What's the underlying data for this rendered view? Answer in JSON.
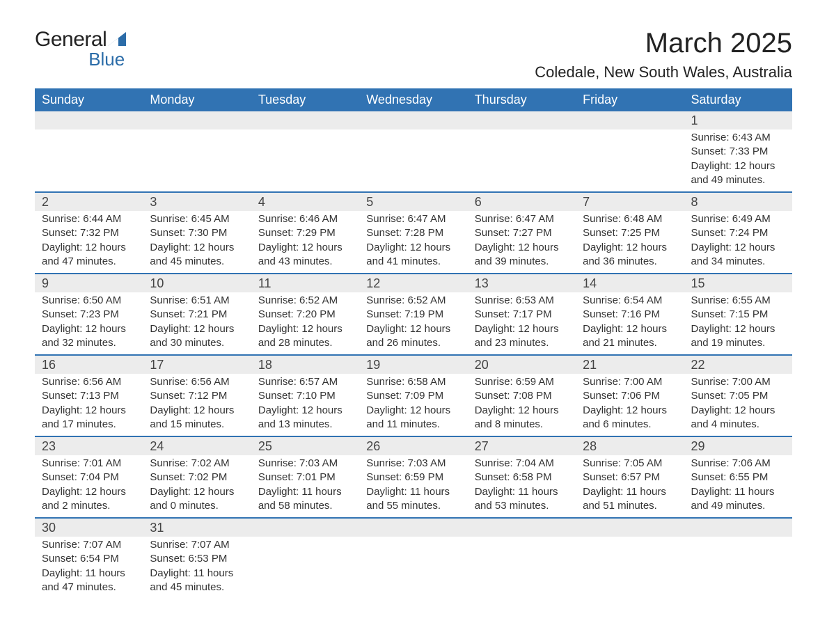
{
  "logo": {
    "text_general": "General",
    "text_blue": "Blue",
    "tri_color": "#2b6ca8"
  },
  "title": "March 2025",
  "location": "Coledale, New South Wales, Australia",
  "colors": {
    "header_bg": "#3173b3",
    "header_text": "#ffffff",
    "daynum_bg": "#ececec",
    "row_border": "#3173b3",
    "body_text": "#333333",
    "title_text": "#222222"
  },
  "typography": {
    "title_fontsize": 40,
    "location_fontsize": 22,
    "header_fontsize": 18,
    "daynum_fontsize": 18,
    "detail_fontsize": 15
  },
  "weekdays": [
    "Sunday",
    "Monday",
    "Tuesday",
    "Wednesday",
    "Thursday",
    "Friday",
    "Saturday"
  ],
  "weeks": [
    [
      null,
      null,
      null,
      null,
      null,
      null,
      {
        "day": "1",
        "sunrise": "Sunrise: 6:43 AM",
        "sunset": "Sunset: 7:33 PM",
        "daylight1": "Daylight: 12 hours",
        "daylight2": "and 49 minutes."
      }
    ],
    [
      {
        "day": "2",
        "sunrise": "Sunrise: 6:44 AM",
        "sunset": "Sunset: 7:32 PM",
        "daylight1": "Daylight: 12 hours",
        "daylight2": "and 47 minutes."
      },
      {
        "day": "3",
        "sunrise": "Sunrise: 6:45 AM",
        "sunset": "Sunset: 7:30 PM",
        "daylight1": "Daylight: 12 hours",
        "daylight2": "and 45 minutes."
      },
      {
        "day": "4",
        "sunrise": "Sunrise: 6:46 AM",
        "sunset": "Sunset: 7:29 PM",
        "daylight1": "Daylight: 12 hours",
        "daylight2": "and 43 minutes."
      },
      {
        "day": "5",
        "sunrise": "Sunrise: 6:47 AM",
        "sunset": "Sunset: 7:28 PM",
        "daylight1": "Daylight: 12 hours",
        "daylight2": "and 41 minutes."
      },
      {
        "day": "6",
        "sunrise": "Sunrise: 6:47 AM",
        "sunset": "Sunset: 7:27 PM",
        "daylight1": "Daylight: 12 hours",
        "daylight2": "and 39 minutes."
      },
      {
        "day": "7",
        "sunrise": "Sunrise: 6:48 AM",
        "sunset": "Sunset: 7:25 PM",
        "daylight1": "Daylight: 12 hours",
        "daylight2": "and 36 minutes."
      },
      {
        "day": "8",
        "sunrise": "Sunrise: 6:49 AM",
        "sunset": "Sunset: 7:24 PM",
        "daylight1": "Daylight: 12 hours",
        "daylight2": "and 34 minutes."
      }
    ],
    [
      {
        "day": "9",
        "sunrise": "Sunrise: 6:50 AM",
        "sunset": "Sunset: 7:23 PM",
        "daylight1": "Daylight: 12 hours",
        "daylight2": "and 32 minutes."
      },
      {
        "day": "10",
        "sunrise": "Sunrise: 6:51 AM",
        "sunset": "Sunset: 7:21 PM",
        "daylight1": "Daylight: 12 hours",
        "daylight2": "and 30 minutes."
      },
      {
        "day": "11",
        "sunrise": "Sunrise: 6:52 AM",
        "sunset": "Sunset: 7:20 PM",
        "daylight1": "Daylight: 12 hours",
        "daylight2": "and 28 minutes."
      },
      {
        "day": "12",
        "sunrise": "Sunrise: 6:52 AM",
        "sunset": "Sunset: 7:19 PM",
        "daylight1": "Daylight: 12 hours",
        "daylight2": "and 26 minutes."
      },
      {
        "day": "13",
        "sunrise": "Sunrise: 6:53 AM",
        "sunset": "Sunset: 7:17 PM",
        "daylight1": "Daylight: 12 hours",
        "daylight2": "and 23 minutes."
      },
      {
        "day": "14",
        "sunrise": "Sunrise: 6:54 AM",
        "sunset": "Sunset: 7:16 PM",
        "daylight1": "Daylight: 12 hours",
        "daylight2": "and 21 minutes."
      },
      {
        "day": "15",
        "sunrise": "Sunrise: 6:55 AM",
        "sunset": "Sunset: 7:15 PM",
        "daylight1": "Daylight: 12 hours",
        "daylight2": "and 19 minutes."
      }
    ],
    [
      {
        "day": "16",
        "sunrise": "Sunrise: 6:56 AM",
        "sunset": "Sunset: 7:13 PM",
        "daylight1": "Daylight: 12 hours",
        "daylight2": "and 17 minutes."
      },
      {
        "day": "17",
        "sunrise": "Sunrise: 6:56 AM",
        "sunset": "Sunset: 7:12 PM",
        "daylight1": "Daylight: 12 hours",
        "daylight2": "and 15 minutes."
      },
      {
        "day": "18",
        "sunrise": "Sunrise: 6:57 AM",
        "sunset": "Sunset: 7:10 PM",
        "daylight1": "Daylight: 12 hours",
        "daylight2": "and 13 minutes."
      },
      {
        "day": "19",
        "sunrise": "Sunrise: 6:58 AM",
        "sunset": "Sunset: 7:09 PM",
        "daylight1": "Daylight: 12 hours",
        "daylight2": "and 11 minutes."
      },
      {
        "day": "20",
        "sunrise": "Sunrise: 6:59 AM",
        "sunset": "Sunset: 7:08 PM",
        "daylight1": "Daylight: 12 hours",
        "daylight2": "and 8 minutes."
      },
      {
        "day": "21",
        "sunrise": "Sunrise: 7:00 AM",
        "sunset": "Sunset: 7:06 PM",
        "daylight1": "Daylight: 12 hours",
        "daylight2": "and 6 minutes."
      },
      {
        "day": "22",
        "sunrise": "Sunrise: 7:00 AM",
        "sunset": "Sunset: 7:05 PM",
        "daylight1": "Daylight: 12 hours",
        "daylight2": "and 4 minutes."
      }
    ],
    [
      {
        "day": "23",
        "sunrise": "Sunrise: 7:01 AM",
        "sunset": "Sunset: 7:04 PM",
        "daylight1": "Daylight: 12 hours",
        "daylight2": "and 2 minutes."
      },
      {
        "day": "24",
        "sunrise": "Sunrise: 7:02 AM",
        "sunset": "Sunset: 7:02 PM",
        "daylight1": "Daylight: 12 hours",
        "daylight2": "and 0 minutes."
      },
      {
        "day": "25",
        "sunrise": "Sunrise: 7:03 AM",
        "sunset": "Sunset: 7:01 PM",
        "daylight1": "Daylight: 11 hours",
        "daylight2": "and 58 minutes."
      },
      {
        "day": "26",
        "sunrise": "Sunrise: 7:03 AM",
        "sunset": "Sunset: 6:59 PM",
        "daylight1": "Daylight: 11 hours",
        "daylight2": "and 55 minutes."
      },
      {
        "day": "27",
        "sunrise": "Sunrise: 7:04 AM",
        "sunset": "Sunset: 6:58 PM",
        "daylight1": "Daylight: 11 hours",
        "daylight2": "and 53 minutes."
      },
      {
        "day": "28",
        "sunrise": "Sunrise: 7:05 AM",
        "sunset": "Sunset: 6:57 PM",
        "daylight1": "Daylight: 11 hours",
        "daylight2": "and 51 minutes."
      },
      {
        "day": "29",
        "sunrise": "Sunrise: 7:06 AM",
        "sunset": "Sunset: 6:55 PM",
        "daylight1": "Daylight: 11 hours",
        "daylight2": "and 49 minutes."
      }
    ],
    [
      {
        "day": "30",
        "sunrise": "Sunrise: 7:07 AM",
        "sunset": "Sunset: 6:54 PM",
        "daylight1": "Daylight: 11 hours",
        "daylight2": "and 47 minutes."
      },
      {
        "day": "31",
        "sunrise": "Sunrise: 7:07 AM",
        "sunset": "Sunset: 6:53 PM",
        "daylight1": "Daylight: 11 hours",
        "daylight2": "and 45 minutes."
      },
      null,
      null,
      null,
      null,
      null
    ]
  ]
}
